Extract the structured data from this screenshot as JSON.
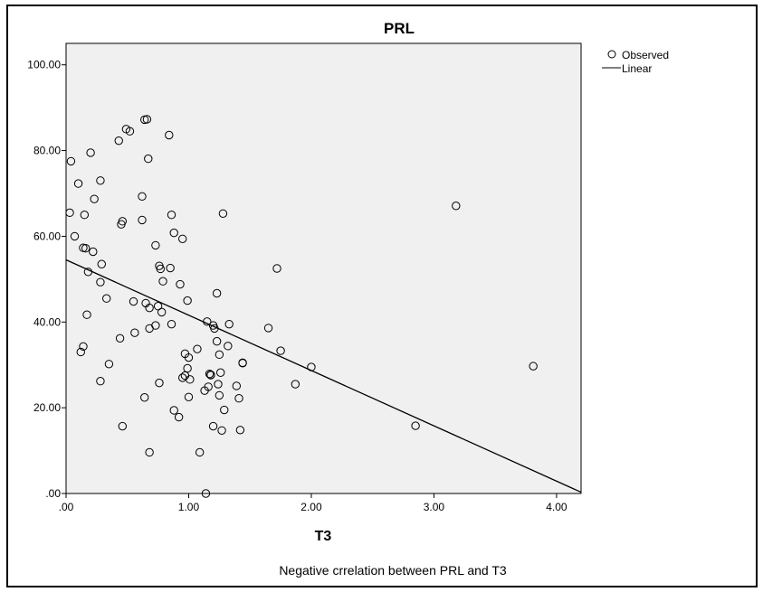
{
  "chart_data": {
    "type": "scatter",
    "title": "PRL",
    "xlabel": "T3",
    "ylabel": "",
    "caption": "Negative crrelation between PRL and T3",
    "xlim": [
      0,
      4.2
    ],
    "ylim": [
      0,
      105
    ],
    "x_ticks": [
      ".00",
      "1.00",
      "2.00",
      "3.00",
      "4.00"
    ],
    "y_ticks": [
      ".00",
      "20.00",
      "40.00",
      "60.00",
      "80.00",
      "100.00"
    ],
    "legend": {
      "position": "top-right",
      "observed_label": "Observed",
      "linear_label": "Linear"
    },
    "colors": {
      "plot_background": "#f0f0f0",
      "marker": "#000000",
      "line": "#000000"
    },
    "regression_line": {
      "x": [
        0,
        4.2
      ],
      "y": [
        54.5,
        0.3
      ]
    },
    "points": [
      [
        0.04,
        77.5
      ],
      [
        0.03,
        65.5
      ],
      [
        0.07,
        60.0
      ],
      [
        0.1,
        72.3
      ],
      [
        0.14,
        57.3
      ],
      [
        0.15,
        65.0
      ],
      [
        0.16,
        57.2
      ],
      [
        0.17,
        41.7
      ],
      [
        0.18,
        51.7
      ],
      [
        0.14,
        34.3
      ],
      [
        0.12,
        33.0
      ],
      [
        0.2,
        79.5
      ],
      [
        0.22,
        56.4
      ],
      [
        0.23,
        68.7
      ],
      [
        0.28,
        73.0
      ],
      [
        0.29,
        53.5
      ],
      [
        0.28,
        49.3
      ],
      [
        0.28,
        26.2
      ],
      [
        0.33,
        45.5
      ],
      [
        0.35,
        30.2
      ],
      [
        0.43,
        82.3
      ],
      [
        0.44,
        36.2
      ],
      [
        0.45,
        62.8
      ],
      [
        0.46,
        63.5
      ],
      [
        0.46,
        15.7
      ],
      [
        0.49,
        85.0
      ],
      [
        0.52,
        84.5
      ],
      [
        0.55,
        44.8
      ],
      [
        0.56,
        37.5
      ],
      [
        0.62,
        63.8
      ],
      [
        0.62,
        69.3
      ],
      [
        0.64,
        22.4
      ],
      [
        0.64,
        87.2
      ],
      [
        0.66,
        87.3
      ],
      [
        0.65,
        44.4
      ],
      [
        0.67,
        78.1
      ],
      [
        0.68,
        43.3
      ],
      [
        0.68,
        38.5
      ],
      [
        0.68,
        9.6
      ],
      [
        0.73,
        57.9
      ],
      [
        0.73,
        39.2
      ],
      [
        0.75,
        43.7
      ],
      [
        0.76,
        53.1
      ],
      [
        0.77,
        52.4
      ],
      [
        0.76,
        25.8
      ],
      [
        0.78,
        42.3
      ],
      [
        0.79,
        49.5
      ],
      [
        0.84,
        83.6
      ],
      [
        0.85,
        52.6
      ],
      [
        0.86,
        65.0
      ],
      [
        0.86,
        39.5
      ],
      [
        0.88,
        60.8
      ],
      [
        0.88,
        19.4
      ],
      [
        0.92,
        17.8
      ],
      [
        0.93,
        48.8
      ],
      [
        0.95,
        59.4
      ],
      [
        0.95,
        27.0
      ],
      [
        0.97,
        32.6
      ],
      [
        0.97,
        27.5
      ],
      [
        0.99,
        45.0
      ],
      [
        0.99,
        29.2
      ],
      [
        1.0,
        22.5
      ],
      [
        1.01,
        26.6
      ],
      [
        1.0,
        31.7
      ],
      [
        1.07,
        33.7
      ],
      [
        1.09,
        9.6
      ],
      [
        1.13,
        24.0
      ],
      [
        1.14,
        0.0
      ],
      [
        1.15,
        40.1
      ],
      [
        1.16,
        24.9
      ],
      [
        1.17,
        27.9
      ],
      [
        1.18,
        27.6
      ],
      [
        1.18,
        27.7
      ],
      [
        1.2,
        39.2
      ],
      [
        1.21,
        38.5
      ],
      [
        1.2,
        15.7
      ],
      [
        1.23,
        46.7
      ],
      [
        1.23,
        35.5
      ],
      [
        1.24,
        25.5
      ],
      [
        1.25,
        32.4
      ],
      [
        1.25,
        22.9
      ],
      [
        1.26,
        28.2
      ],
      [
        1.27,
        14.7
      ],
      [
        1.28,
        65.3
      ],
      [
        1.29,
        19.5
      ],
      [
        1.32,
        34.4
      ],
      [
        1.33,
        39.5
      ],
      [
        1.39,
        25.1
      ],
      [
        1.41,
        22.2
      ],
      [
        1.42,
        14.8
      ],
      [
        1.44,
        30.5
      ],
      [
        1.44,
        30.4
      ],
      [
        1.65,
        38.6
      ],
      [
        1.72,
        52.5
      ],
      [
        1.75,
        33.3
      ],
      [
        1.87,
        25.5
      ],
      [
        2.0,
        29.5
      ],
      [
        2.85,
        15.8
      ],
      [
        3.18,
        67.1
      ],
      [
        3.81,
        29.7
      ]
    ]
  }
}
